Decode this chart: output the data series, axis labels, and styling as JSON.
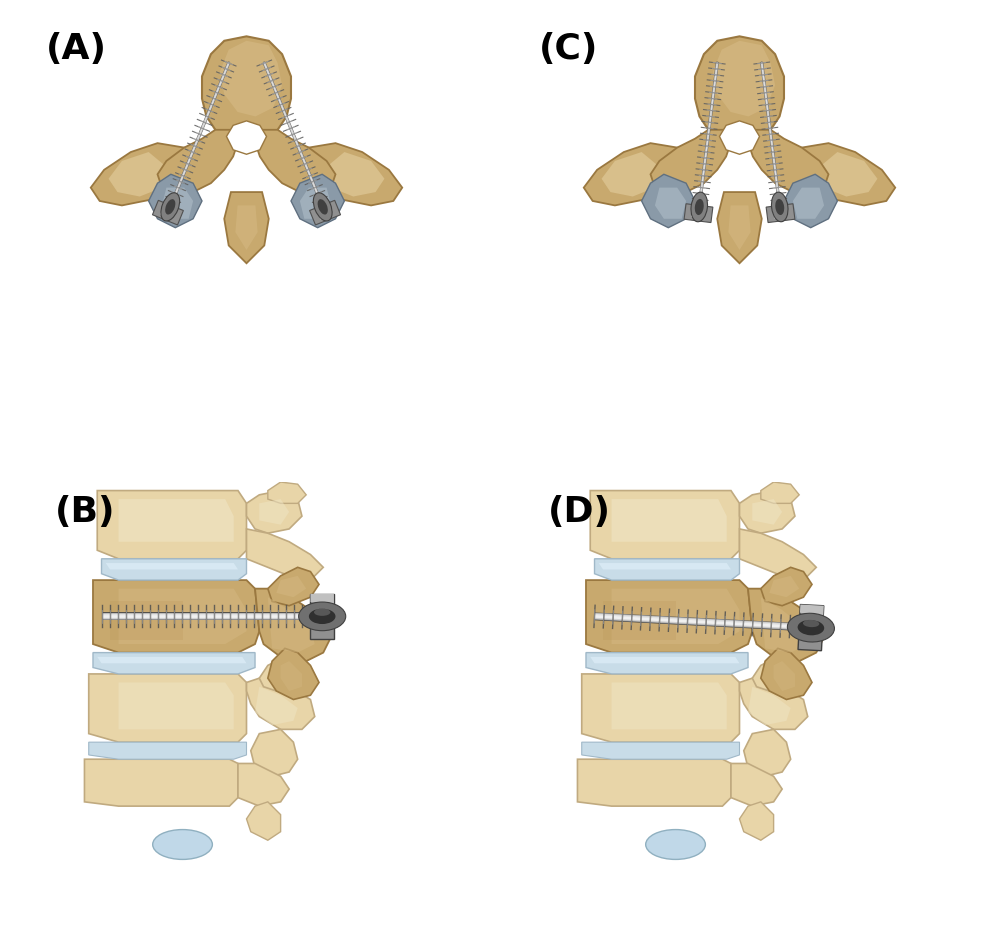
{
  "background_color": "#ffffff",
  "panel_labels": [
    "(A)",
    "(B)",
    "(C)",
    "(D)"
  ],
  "label_fontsize": 26,
  "label_fontweight": "bold",
  "figsize": [
    9.86,
    9.27
  ],
  "dpi": 100,
  "bone_golden": "#c8a96e",
  "bone_light": "#e8d5a8",
  "bone_cream": "#efe5c5",
  "bone_dark": "#a07840",
  "bone_mid": "#d4b882",
  "bone_shadow": "#b89050",
  "cartilage_color": "#c8dce8",
  "cartilage_edge": "#a0b8c8",
  "screw_body": "#909090",
  "screw_thread_light": "#d0d0d0",
  "screw_thread_dark": "#606060",
  "screw_head_light": "#c0c0c0",
  "screw_head_dark": "#505050"
}
